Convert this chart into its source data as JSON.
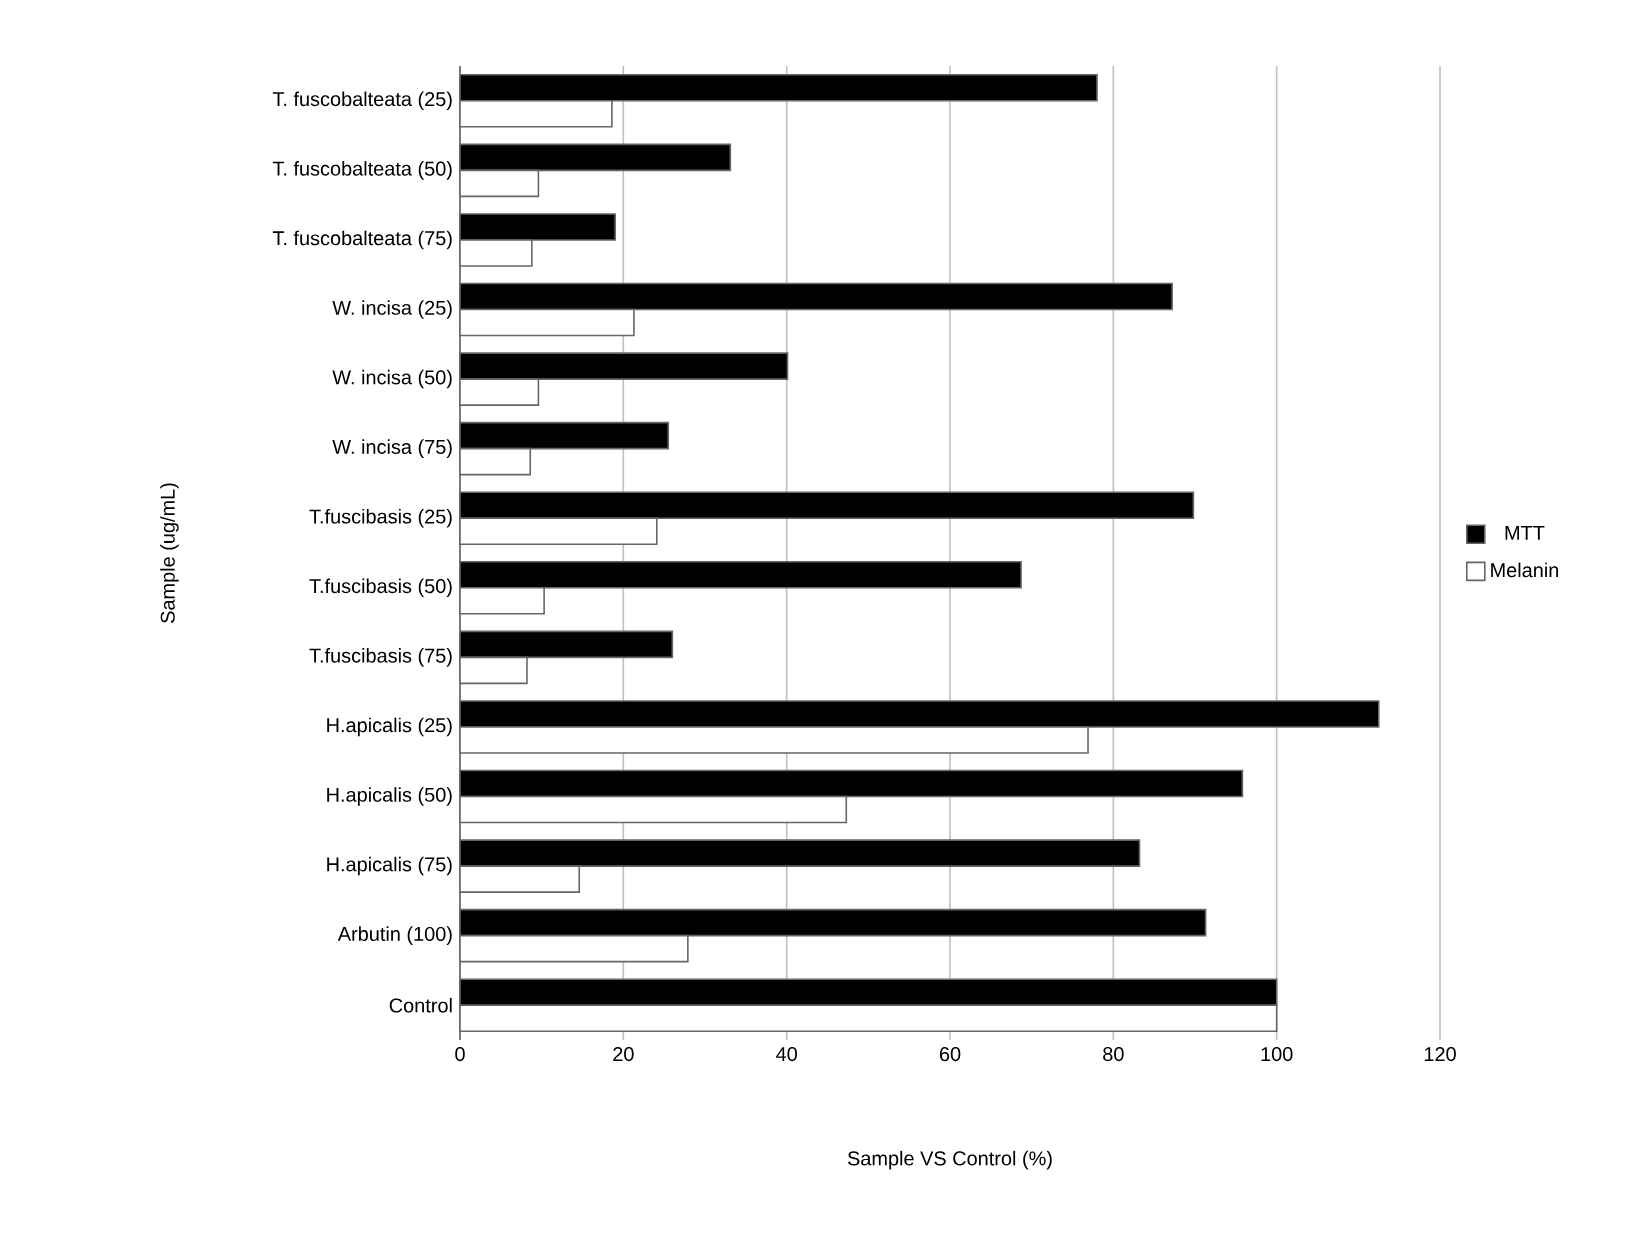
{
  "chart_data": {
    "type": "bar",
    "orientation": "horizontal",
    "xlabel": "Sample VS Control (%)",
    "ylabel": "Sample (ug/mL)",
    "categories": [
      "T. fuscobalteata (25)",
      "T. fuscobalteata (50)",
      "T. fuscobalteata (75)",
      "W. incisa (25)",
      "W. incisa (50)",
      "W. incisa (75)",
      "T.fuscibasis (25)",
      "T.fuscibasis (50)",
      "T.fuscibasis (75)",
      "H.apicalis (25)",
      "H.apicalis (50)",
      "H.apicalis (75)",
      "Arbutin (100)",
      "Control"
    ],
    "series": [
      {
        "name": "MTT",
        "color": "#000000",
        "values": [
          78,
          33.1,
          19,
          87.2,
          40.1,
          25.5,
          89.8,
          68.7,
          26,
          112.5,
          95.8,
          83.2,
          91.3,
          100
        ]
      },
      {
        "name": "Melanin",
        "color": "#ffffff",
        "values": [
          18.6,
          9.6,
          8.8,
          21.3,
          9.6,
          8.6,
          24.1,
          10.3,
          8.2,
          76.9,
          47.3,
          14.6,
          27.9,
          100
        ]
      }
    ],
    "xlim": [
      0,
      120
    ],
    "xticks": [
      0,
      20,
      40,
      60,
      80,
      100,
      120
    ],
    "grid": "x",
    "legend": "right"
  }
}
